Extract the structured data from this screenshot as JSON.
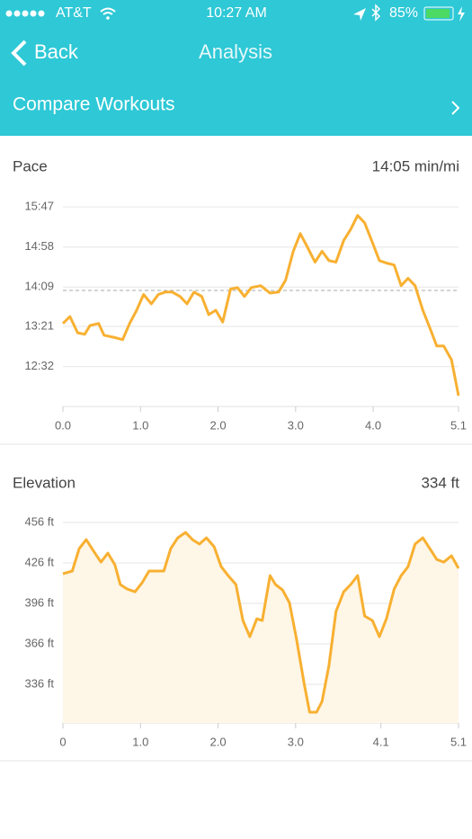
{
  "status_bar": {
    "carrier": "AT&T",
    "time": "10:27 AM",
    "battery": "85%"
  },
  "nav": {
    "back": "Back",
    "title": "Analysis"
  },
  "compare": "Compare Workouts",
  "chart_data": [
    {
      "type": "line",
      "title": "Pace",
      "average": {
        "value": 14.0833,
        "label": "14:05 min/mi"
      },
      "x": [
        0,
        0.09,
        0.19,
        0.28,
        0.35,
        0.46,
        0.53,
        0.65,
        0.77,
        0.86,
        0.95,
        1.04,
        1.14,
        1.23,
        1.32,
        1.41,
        1.51,
        1.6,
        1.69,
        1.79,
        1.88,
        1.97,
        2.06,
        2.16,
        2.25,
        2.34,
        2.43,
        2.55,
        2.67,
        2.78,
        2.87,
        2.97,
        3.06,
        3.15,
        3.25,
        3.34,
        3.43,
        3.52,
        3.62,
        3.71,
        3.8,
        3.89,
        3.99,
        4.08,
        4.17,
        4.27,
        4.36,
        4.45,
        4.54,
        4.64,
        4.73,
        4.82,
        4.91,
        5.01,
        5.1
      ],
      "series": [
        {
          "color": "#f8b031",
          "values": [
            13.41,
            13.55,
            13.22,
            13.19,
            13.37,
            13.41,
            13.17,
            13.13,
            13.08,
            13.41,
            13.68,
            14.0,
            13.81,
            14.0,
            14.05,
            14.05,
            13.96,
            13.81,
            14.05,
            13.96,
            13.59,
            13.68,
            13.44,
            14.11,
            14.14,
            13.96,
            14.14,
            14.18,
            14.03,
            14.05,
            14.29,
            14.88,
            15.24,
            14.97,
            14.66,
            14.88,
            14.69,
            14.66,
            15.1,
            15.33,
            15.61,
            15.46,
            15.06,
            14.69,
            14.64,
            14.6,
            14.18,
            14.33,
            14.18,
            13.68,
            13.32,
            12.95,
            12.95,
            12.67,
            11.94
          ]
        }
      ],
      "xlim": [
        0,
        5.1
      ],
      "ylim": [
        11.72,
        16.06
      ],
      "xticks": [
        {
          "value": 0,
          "label": "0.0"
        },
        {
          "value": 1,
          "label": "1.0"
        },
        {
          "value": 2,
          "label": "2.0"
        },
        {
          "value": 3,
          "label": "3.0"
        },
        {
          "value": 4,
          "label": "4.0"
        },
        5.1
      ],
      "yticks": [
        {
          "value": 15.7833,
          "label": "15:47"
        },
        {
          "value": 14.9667,
          "label": "14:58"
        },
        {
          "value": 14.15,
          "label": "14:09"
        },
        {
          "value": 13.35,
          "label": "13:21"
        },
        {
          "value": 12.5333,
          "label": "12:32"
        }
      ],
      "grid": true,
      "area": false
    },
    {
      "type": "line",
      "title": "Elevation",
      "summary": "334 ft",
      "x": [
        0,
        0.12,
        0.21,
        0.3,
        0.39,
        0.49,
        0.58,
        0.67,
        0.74,
        0.83,
        0.93,
        1.02,
        1.11,
        1.21,
        1.3,
        1.39,
        1.48,
        1.58,
        1.67,
        1.76,
        1.85,
        1.95,
        2.04,
        2.13,
        2.23,
        2.32,
        2.41,
        2.5,
        2.57,
        2.67,
        2.74,
        2.83,
        2.92,
        3.01,
        3.11,
        3.18,
        3.27,
        3.34,
        3.43,
        3.52,
        3.62,
        3.71,
        3.8,
        3.89,
        3.99,
        4.08,
        4.17,
        4.27,
        4.36,
        4.45,
        4.54,
        4.64,
        4.73,
        4.82,
        4.91,
        5.01,
        5.1
      ],
      "series": [
        {
          "color": "#f8b031",
          "fill": "#fef6e7",
          "values": [
            418.0,
            420.0,
            436.6,
            443.3,
            435.3,
            426.6,
            433.3,
            424.6,
            410.0,
            406.6,
            404.6,
            411.3,
            420.0,
            420.0,
            420.0,
            436.6,
            444.6,
            448.6,
            443.3,
            440.0,
            444.6,
            438.0,
            423.3,
            416.6,
            410.0,
            383.3,
            371.3,
            384.6,
            383.3,
            416.6,
            410.0,
            406.0,
            396.6,
            370.0,
            336.6,
            315.3,
            315.3,
            323.3,
            350.0,
            390.0,
            404.6,
            410.0,
            416.6,
            386.6,
            383.3,
            371.3,
            384.6,
            406.6,
            416.6,
            423.3,
            440.0,
            444.6,
            436.6,
            428.6,
            426.6,
            431.3,
            422.0
          ]
        }
      ],
      "xlim": [
        0,
        5.1
      ],
      "ylim": [
        307.3,
        466.7
      ],
      "xticks": [
        0,
        {
          "value": 1,
          "label": "1.0"
        },
        {
          "value": 2,
          "label": "2.0"
        },
        {
          "value": 3,
          "label": "3.0"
        },
        4.1,
        5.1
      ],
      "yticks": [
        {
          "value": 456,
          "label": "456 ft"
        },
        {
          "value": 426,
          "label": "426 ft"
        },
        {
          "value": 396,
          "label": "396 ft"
        },
        {
          "value": 366,
          "label": "366 ft"
        },
        {
          "value": 336,
          "label": "336 ft"
        }
      ],
      "grid": true,
      "area": true
    }
  ]
}
